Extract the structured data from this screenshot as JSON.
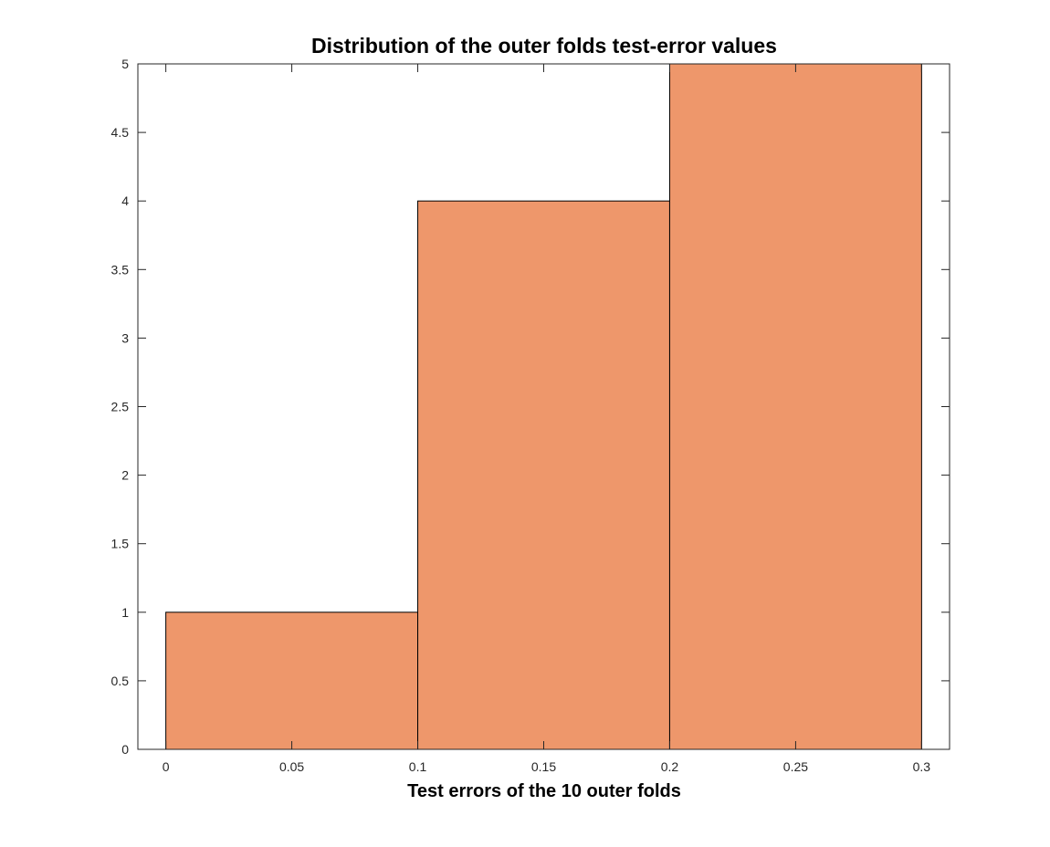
{
  "chart_data": {
    "type": "bar",
    "subtype": "histogram",
    "title": "Distribution of the outer folds test-error values",
    "xlabel": "Test errors of the 10 outer folds",
    "ylabel": "",
    "bin_edges": [
      0,
      0.1,
      0.2,
      0.3
    ],
    "counts": [
      1,
      4,
      5
    ],
    "xlim": [
      -0.0111,
      0.3111
    ],
    "ylim": [
      0,
      5
    ],
    "xticks": [
      0,
      0.05,
      0.1,
      0.15,
      0.2,
      0.25,
      0.3
    ],
    "xtick_labels": [
      "0",
      "0.05",
      "0.1",
      "0.15",
      "0.2",
      "0.25",
      "0.3"
    ],
    "yticks": [
      0,
      0.5,
      1,
      1.5,
      2,
      2.5,
      3,
      3.5,
      4,
      4.5,
      5
    ],
    "ytick_labels": [
      "0",
      "0.5",
      "1",
      "1.5",
      "2",
      "2.5",
      "3",
      "3.5",
      "4",
      "4.5",
      "5"
    ],
    "grid": false,
    "legend": "none",
    "colors": {
      "bar_fill": "#ee976b",
      "bar_edge": "#000000",
      "axis": "#262626",
      "background": "#ffffff"
    }
  }
}
